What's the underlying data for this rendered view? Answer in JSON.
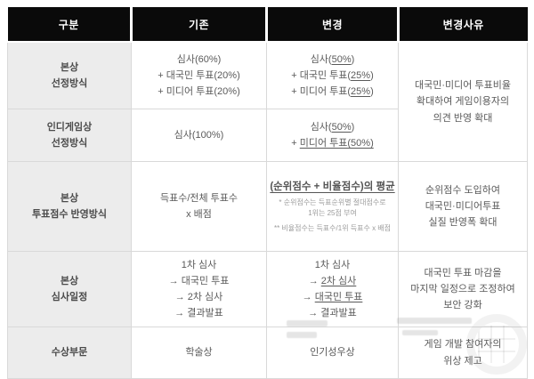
{
  "header": {
    "columns": [
      "구분",
      "기존",
      "변경",
      "변경사유"
    ]
  },
  "rows": [
    {
      "category": [
        "본상",
        "선정방식"
      ],
      "existing": [
        [
          {
            "t": "심사(60%)"
          }
        ],
        [
          {
            "t": "+ 대국민 투표(20%)"
          }
        ],
        [
          {
            "t": "+ 미디어 투표(20%)"
          }
        ]
      ],
      "changed": [
        [
          {
            "t": "심사("
          },
          {
            "t": "50%",
            "u": 1
          },
          {
            "t": ")"
          }
        ],
        [
          {
            "t": "+ 대국민 투표("
          },
          {
            "t": "25%",
            "u": 1
          },
          {
            "t": ")"
          }
        ],
        [
          {
            "t": "+ 미디어 투표("
          },
          {
            "t": "25%",
            "u": 1
          },
          {
            "t": ")"
          }
        ]
      ],
      "reason": [
        "대국민·미디어 투표비율",
        "확대하여 게임이용자의",
        "의견 반영 확대"
      ]
    },
    {
      "category": [
        "인디게임상",
        "선정방식"
      ],
      "existing": [
        [
          {
            "t": "심사(100%)"
          }
        ]
      ],
      "changed": [
        [
          {
            "t": "심사("
          },
          {
            "t": "50%",
            "u": 1
          },
          {
            "t": ")"
          }
        ],
        [
          {
            "t": "+ "
          },
          {
            "t": "미디어 투표(50%)",
            "u": 1
          }
        ]
      ]
    },
    {
      "category": [
        "본상",
        "투표점수 반영방식"
      ],
      "existing": [
        [
          {
            "t": "득표수/전체 투표수"
          }
        ],
        [
          {
            "t": "x 배점"
          }
        ]
      ],
      "changed_main": [
        [
          {
            "t": "(순위점수 + 비율점수)의 평균",
            "u": 1
          }
        ]
      ],
      "footnote1": [
        "* 순위점수는 득표순위별 절대점수로",
        "1위는 25점 부여"
      ],
      "footnote2": [
        "** 비율점수는 득표수/1위 득표수 x 배점"
      ],
      "reason": [
        "순위점수 도입하여",
        "대국민·미디어투표",
        "실질 반영폭 확대"
      ]
    },
    {
      "category": [
        "본상",
        "심사일정"
      ],
      "existing": [
        [
          {
            "t": "1차 심사"
          }
        ],
        [
          {
            "t": "→ 대국민 투표"
          }
        ],
        [
          {
            "t": "→ 2차 심사"
          }
        ],
        [
          {
            "t": "→ 결과발표"
          }
        ]
      ],
      "changed": [
        [
          {
            "t": "1차 심사"
          }
        ],
        [
          {
            "t": "→ "
          },
          {
            "t": "2차 심사",
            "u": 1
          }
        ],
        [
          {
            "t": "→ "
          },
          {
            "t": "대국민 투표",
            "u": 1
          }
        ],
        [
          {
            "t": "→ 결과발표"
          }
        ]
      ],
      "reason": [
        "대국민 투표 마감을",
        "마지막 일정으로 조정하여",
        "보안 강화"
      ]
    },
    {
      "category": [
        "수상부문"
      ],
      "existing": [
        [
          {
            "t": "학술상"
          }
        ]
      ],
      "changed": [
        [
          {
            "t": "인기성우상"
          }
        ]
      ],
      "reason": [
        "게임 개발 참여자의",
        "위상 제고"
      ]
    }
  ]
}
